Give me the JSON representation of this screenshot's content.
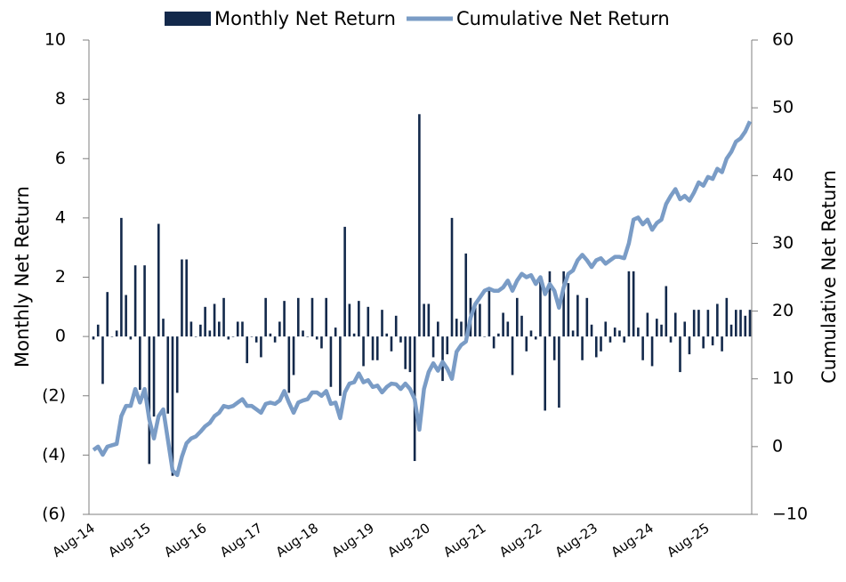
{
  "chart_data": {
    "type": "bar-line",
    "y_label": "Monthly Net Return",
    "y2_label": "Cumulative Net Return",
    "categories": [
      "Aug-14",
      null,
      null,
      null,
      null,
      null,
      null,
      null,
      null,
      null,
      null,
      null,
      "Aug-15",
      null,
      null,
      null,
      null,
      null,
      null,
      null,
      null,
      null,
      null,
      null,
      "Aug-16",
      null,
      null,
      null,
      null,
      null,
      null,
      null,
      null,
      null,
      null,
      null,
      "Aug-17",
      null,
      null,
      null,
      null,
      null,
      null,
      null,
      null,
      null,
      null,
      null,
      "Aug-18",
      null,
      null,
      null,
      null,
      null,
      null,
      null,
      null,
      null,
      null,
      null,
      "Aug-19",
      null,
      null,
      null,
      null,
      null,
      null,
      null,
      null,
      null,
      null,
      null,
      "Aug-20",
      null,
      null,
      null,
      null,
      null,
      null,
      null,
      null,
      null,
      null,
      null,
      "Aug-21",
      null,
      null,
      null,
      null,
      null,
      null,
      null,
      null,
      null,
      null,
      null,
      "Aug-22",
      null,
      null,
      null,
      null,
      null,
      null,
      null,
      null,
      null,
      null,
      null,
      "Aug-23",
      null,
      null,
      null,
      null,
      null,
      null,
      null,
      null,
      null,
      null,
      null,
      "Aug-24",
      null,
      null,
      null,
      null,
      null,
      null,
      null,
      null,
      null,
      null,
      null,
      "Aug-25",
      null,
      null,
      null,
      null,
      null,
      null,
      null,
      null,
      null
    ],
    "series": [
      {
        "name": "Monthly Net Return",
        "color": "#13294b",
        "axis": "y",
        "kind": "bar",
        "values": [
          -0.1,
          0.4,
          -1.6,
          1.5,
          0,
          0.2,
          4,
          1.4,
          -0.1,
          2.4,
          -1.8,
          2.4,
          -4.3,
          -2.7,
          3.8,
          0.6,
          -2.6,
          -4.7,
          -1.9,
          2.6,
          2.6,
          0.5,
          0,
          0.4,
          1,
          0.2,
          1.1,
          0.5,
          1.3,
          -0.1,
          0,
          0.5,
          0.5,
          -0.9,
          0,
          -0.2,
          -0.7,
          1.3,
          0.1,
          -0.2,
          0.5,
          1.2,
          -1.9,
          -1.3,
          1.3,
          0.2,
          0,
          1.3,
          -0.1,
          -0.4,
          1.3,
          -1.7,
          0.3,
          -2,
          3.7,
          1.1,
          0.1,
          1.2,
          -1,
          1,
          -0.8,
          -0.8,
          0.9,
          0.1,
          -0.5,
          0.7,
          -0.2,
          -1.1,
          -1.2,
          -4.2,
          7.5,
          1.1,
          1.1,
          -0.7,
          0.5,
          -1.5,
          -0.6,
          4,
          0.6,
          0.5,
          2.8,
          1.3,
          1,
          1.1,
          0,
          1.6,
          -0.4,
          0.1,
          0.8,
          0.5,
          -1.3,
          1.3,
          0.7,
          -0.5,
          0.2,
          -0.1,
          1.9,
          -2.5,
          2.2,
          -0.8,
          -2.4,
          2.2,
          1.8,
          0.2,
          1.4,
          -0.8,
          1.3,
          0.4,
          -0.7,
          -0.5,
          0.5,
          -0.2,
          0.3,
          0.2,
          -0.2,
          2.2,
          2.2,
          0.3,
          -0.8,
          0.8,
          -1,
          0.6,
          0.4,
          1.7,
          -0.2,
          0.8,
          -1.2,
          0.5,
          -0.6,
          0.9,
          0.9,
          -0.4,
          0.9,
          -0.3,
          1.1,
          -0.5,
          1.3,
          0.4,
          0.9,
          0.9,
          0.7,
          0.9
        ]
      },
      {
        "name": "Cumulative Net Return",
        "color": "#7a9cc6",
        "axis": "y2",
        "kind": "line",
        "values": [
          -0.5,
          0,
          -1.2,
          0,
          0.2,
          0.4,
          4.5,
          6,
          6,
          8.5,
          6.5,
          8.5,
          4,
          1.2,
          4.5,
          5.5,
          1,
          -3.5,
          -4.2,
          -1.5,
          0.5,
          1.2,
          1.5,
          2.2,
          3,
          3.5,
          4.5,
          5,
          6,
          5.8,
          6,
          6.5,
          7,
          6,
          6,
          5.5,
          5,
          6.3,
          6.5,
          6.3,
          6.8,
          8.2,
          6.5,
          5,
          6.5,
          6.8,
          7,
          8,
          8,
          7.5,
          8.2,
          6.3,
          6.5,
          4.2,
          8,
          9.3,
          9.5,
          10.8,
          9.5,
          9.8,
          8.8,
          9,
          8,
          8.8,
          9.3,
          9.2,
          8.5,
          9.3,
          8.5,
          7,
          2.5,
          8.5,
          11,
          12.3,
          11.2,
          12.5,
          11.5,
          10,
          14,
          15,
          15.5,
          19,
          21,
          22,
          23,
          23.3,
          23,
          23,
          23.5,
          24.5,
          23,
          24.5,
          25.5,
          25,
          25.3,
          24,
          25,
          22.5,
          24,
          23,
          20.5,
          23.5,
          25.5,
          26,
          27.5,
          28.3,
          27.5,
          26.5,
          27.5,
          27.8,
          27,
          27.5,
          28,
          28,
          27.8,
          30,
          33.5,
          33.8,
          32.8,
          33.5,
          32,
          33,
          33.5,
          35.8,
          37,
          38,
          36.5,
          37,
          36.3,
          37.5,
          39,
          38.5,
          39.8,
          39.5,
          41,
          40.5,
          42.5,
          43.5,
          45,
          45.5,
          46.5,
          48
        ]
      }
    ],
    "ylim": [
      -6,
      10
    ],
    "yticks": [
      {
        "value": -6,
        "label": "(6)"
      },
      {
        "value": -4,
        "label": "(4)"
      },
      {
        "value": -2,
        "label": "(2)"
      },
      0,
      2,
      4,
      6,
      8,
      10
    ],
    "y2lim": [
      -10,
      60
    ],
    "y2ticks": [
      {
        "value": -10,
        "label": "−10"
      },
      0,
      10,
      20,
      30,
      40,
      50,
      60
    ],
    "legend": "top"
  }
}
